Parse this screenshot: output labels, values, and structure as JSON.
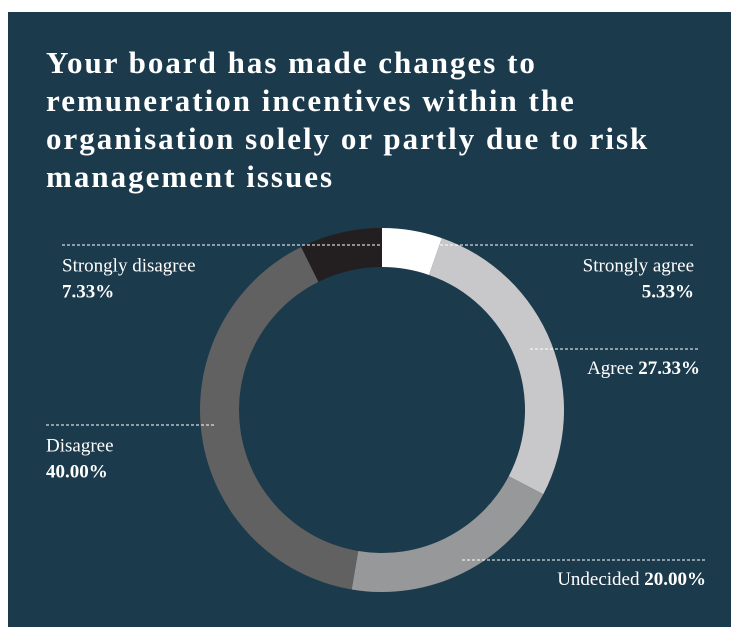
{
  "chart_data": {
    "type": "donut",
    "title": "Your board has made changes to remuneration incentives within the organisation solely or partly due to risk management issues",
    "categories": [
      "Strongly agree",
      "Agree",
      "Undecided",
      "Disagree",
      "Strongly disagree"
    ],
    "values": [
      5.33,
      27.33,
      20.0,
      40.0,
      7.33
    ],
    "value_labels": [
      "5.33%",
      "27.33%",
      "20.00%",
      "40.00%",
      "7.33%"
    ],
    "colors": [
      "#ffffff",
      "#c8c8ca",
      "#97989a",
      "#616161",
      "#231f20"
    ]
  }
}
